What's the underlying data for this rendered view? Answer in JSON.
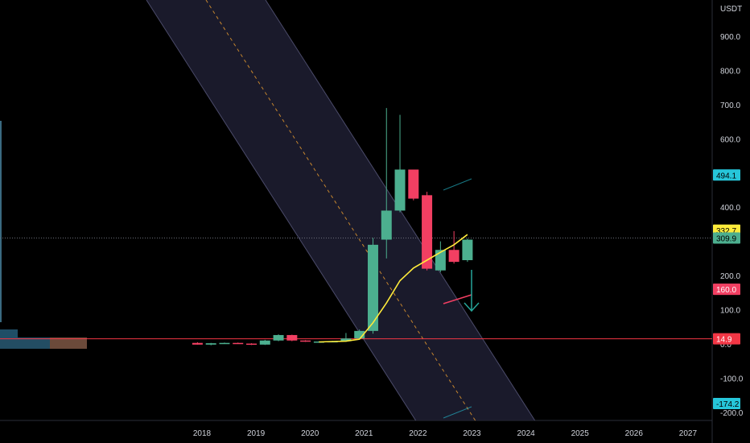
{
  "chart_data": {
    "type": "candlestick",
    "currency": "USDT",
    "y_ticks": [
      900.0,
      800.0,
      700.0,
      600.0,
      400.0,
      200.0,
      100.0,
      0.0,
      -100.0,
      -200.0
    ],
    "y_tick_labels": [
      "900.0",
      "800.0",
      "700.0",
      "600.0",
      "400.0",
      "200.0",
      "100.0",
      "0.0",
      "-100.0",
      "-200.0"
    ],
    "x_tick_labels": [
      "2018",
      "2019",
      "2020",
      "2021",
      "2022",
      "2023",
      "2024",
      "2025",
      "2026",
      "2027"
    ],
    "candles": [
      {
        "t": "2017-12",
        "o": 3,
        "h": 5,
        "l": -2,
        "c": -2
      },
      {
        "t": "2018-03",
        "o": -2,
        "h": 3,
        "l": -4,
        "c": 2
      },
      {
        "t": "2018-06",
        "o": 2,
        "h": 4,
        "l": 0,
        "c": 3
      },
      {
        "t": "2018-09",
        "o": 3,
        "h": 4,
        "l": 0,
        "c": 1
      },
      {
        "t": "2018-12",
        "o": 1,
        "h": 2,
        "l": -3,
        "c": -2
      },
      {
        "t": "2019-03",
        "o": -2,
        "h": 12,
        "l": -3,
        "c": 10
      },
      {
        "t": "2019-06",
        "o": 10,
        "h": 28,
        "l": 8,
        "c": 26
      },
      {
        "t": "2019-09",
        "o": 26,
        "h": 27,
        "l": 8,
        "c": 10
      },
      {
        "t": "2019-12",
        "o": 10,
        "h": 11,
        "l": 6,
        "c": 7
      },
      {
        "t": "2020-03",
        "o": 7,
        "h": 8,
        "l": 4,
        "c": 7
      },
      {
        "t": "2020-06",
        "o": 7,
        "h": 9,
        "l": 6,
        "c": 8
      },
      {
        "t": "2020-09",
        "o": 8,
        "h": 32,
        "l": 6,
        "c": 16
      },
      {
        "t": "2020-12",
        "o": 16,
        "h": 42,
        "l": 13,
        "c": 38
      },
      {
        "t": "2021-03",
        "o": 38,
        "h": 310,
        "l": 30,
        "c": 290
      },
      {
        "t": "2021-06",
        "o": 305,
        "h": 690,
        "l": 250,
        "c": 390
      },
      {
        "t": "2021-09",
        "o": 390,
        "h": 670,
        "l": 385,
        "c": 510
      },
      {
        "t": "2021-12",
        "o": 510,
        "h": 510,
        "l": 420,
        "c": 425
      },
      {
        "t": "2022-03",
        "o": 435,
        "h": 445,
        "l": 215,
        "c": 220
      },
      {
        "t": "2022-06",
        "o": 215,
        "h": 300,
        "l": 210,
        "c": 275
      },
      {
        "t": "2022-09",
        "o": 275,
        "h": 330,
        "l": 235,
        "c": 240
      },
      {
        "t": "2022-12",
        "o": 245,
        "h": 308,
        "l": 240,
        "c": 305
      }
    ],
    "moving_average": [
      {
        "t": "2020-03",
        "v": 6
      },
      {
        "t": "2020-09",
        "v": 8
      },
      {
        "t": "2020-12",
        "v": 14
      },
      {
        "t": "2021-03",
        "v": 62
      },
      {
        "t": "2021-06",
        "v": 120
      },
      {
        "t": "2021-09",
        "v": 185
      },
      {
        "t": "2021-12",
        "v": 222
      },
      {
        "t": "2022-03",
        "v": 245
      },
      {
        "t": "2022-06",
        "v": 268
      },
      {
        "t": "2022-09",
        "v": 290
      },
      {
        "t": "2022-12",
        "v": 320
      }
    ],
    "horizontal_line": {
      "value": 14.9,
      "color": "#f23645"
    },
    "price_tags": [
      {
        "label": "494.1",
        "value": 494.1,
        "bg": "#26c6da",
        "fg": "#000000"
      },
      {
        "label": "332.7",
        "value": 332.7,
        "bg": "#ffeb3b",
        "fg": "#000000"
      },
      {
        "label": "309.9",
        "value": 309.9,
        "bg": "#4caf8f",
        "fg": "#000000"
      },
      {
        "label": "160.0",
        "value": 160.0,
        "bg": "#7a3a3a",
        "fg": "#ffffff"
      },
      {
        "label": "160.0",
        "value": 160.0,
        "bg": "#f23f62",
        "fg": "#ffffff"
      },
      {
        "label": "14.9",
        "value": 14.9,
        "bg": "#f23645",
        "fg": "#ffffff"
      },
      {
        "label": "-174.2",
        "value": -174.2,
        "bg": "#26c6da",
        "fg": "#000000"
      }
    ],
    "colors": {
      "up": "#4caf8f",
      "down": "#f23f62",
      "ma": "#ffeb3b",
      "channel_fill": "#1f1f33",
      "channel_edge": "#4b4b6a",
      "channel_mid": "#f0a030",
      "arrow": "#26a69a"
    },
    "grid": false
  }
}
